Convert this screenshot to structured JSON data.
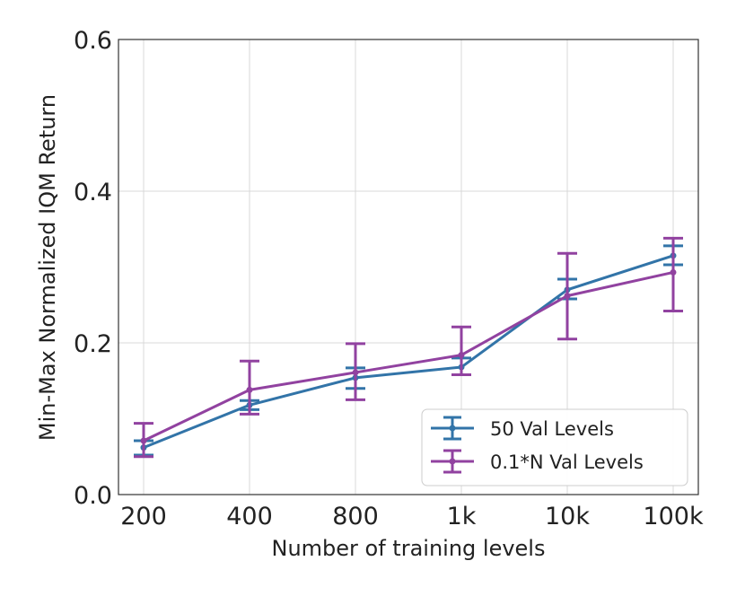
{
  "chart_data": {
    "type": "line",
    "title": "",
    "xlabel": "Number of training levels",
    "ylabel": "Min-Max Normalized IQM Return",
    "categories": [
      "200",
      "400",
      "800",
      "1k",
      "10k",
      "100k"
    ],
    "ylim": [
      0,
      0.6
    ],
    "yticks": [
      0.0,
      0.2,
      0.4,
      0.6
    ],
    "ytick_labels": [
      "0.0",
      "0.2",
      "0.4",
      "0.6"
    ],
    "grid": true,
    "legend_position": "lower-right",
    "series": [
      {
        "name": "50 Val Levels",
        "color": "#3274a8",
        "values": [
          0.062,
          0.118,
          0.154,
          0.168,
          0.27,
          0.315
        ],
        "err_low": [
          0.052,
          0.112,
          0.14,
          0.158,
          0.258,
          0.303
        ],
        "err_high": [
          0.071,
          0.124,
          0.167,
          0.18,
          0.284,
          0.328
        ]
      },
      {
        "name": "0.1*N Val Levels",
        "color": "#9142a0",
        "values": [
          0.071,
          0.138,
          0.161,
          0.184,
          0.262,
          0.293
        ],
        "err_low": [
          0.05,
          0.106,
          0.125,
          0.158,
          0.205,
          0.242
        ],
        "err_high": [
          0.094,
          0.176,
          0.199,
          0.221,
          0.318,
          0.338
        ]
      }
    ]
  }
}
